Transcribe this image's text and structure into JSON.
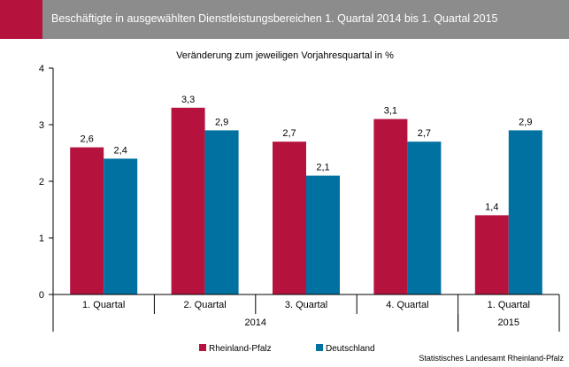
{
  "header": {
    "title": "Beschäftigte in ausgewählten Dienstleistungsbereichen 1. Quartal 2014 bis 1. Quartal 2015"
  },
  "source": "Statistisches Landesamt Rheinland-Pfalz",
  "colors": {
    "rheinland_pfalz": "#b5123e",
    "deutschland": "#0071a0",
    "header_bg": "#8c8c8c"
  },
  "chart_data": {
    "type": "bar",
    "title": "Veränderung zum jeweiligen Vorjahresquartal in %",
    "categories": [
      "1. Quartal",
      "2. Quartal",
      "3. Quartal",
      "4. Quartal",
      "1. Quartal"
    ],
    "year_groups": [
      {
        "label": "2014",
        "start": 0,
        "end": 3
      },
      {
        "label": "2015",
        "start": 4,
        "end": 4
      }
    ],
    "series": [
      {
        "name": "Rheinland-Pfalz",
        "values": [
          2.6,
          3.3,
          2.7,
          3.1,
          1.4
        ],
        "labels": [
          "2,6",
          "3,3",
          "2,7",
          "3,1",
          "1,4"
        ]
      },
      {
        "name": "Deutschland",
        "values": [
          2.4,
          2.9,
          2.1,
          2.7,
          2.9
        ],
        "labels": [
          "2,4",
          "2,9",
          "2,1",
          "2,7",
          "2,9"
        ]
      }
    ],
    "ylim": [
      0,
      4
    ],
    "yticks": [
      0,
      1,
      2,
      3,
      4
    ],
    "legend": "bottom",
    "grid": false
  }
}
